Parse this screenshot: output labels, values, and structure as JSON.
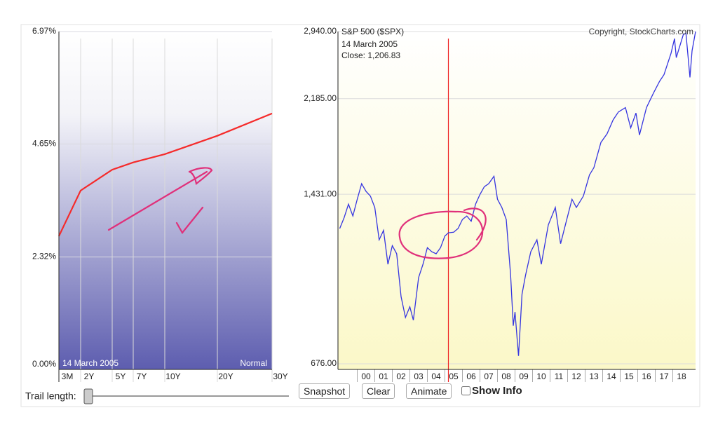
{
  "chart_data": [
    {
      "type": "line",
      "date": "14  March 2005",
      "curve_shape": "Normal",
      "categories": [
        "3M",
        "2Y",
        "5Y",
        "7Y",
        "10Y",
        "20Y",
        "30Y"
      ],
      "values": [
        2.75,
        3.69,
        4.12,
        4.27,
        4.44,
        4.82,
        5.28
      ],
      "color": "#f52a2a",
      "ylim": [
        0,
        6.97
      ],
      "yticks": [
        {
          "value": 0,
          "label": "0.00%"
        },
        {
          "value": 2.32,
          "label": "2.32%"
        },
        {
          "value": 4.65,
          "label": "4.65%"
        },
        {
          "value": 6.97,
          "label": "6.97%"
        }
      ]
    },
    {
      "type": "line",
      "title": "S&P 500 ($SPX)",
      "copyright": "Copyright, StockCharts.com",
      "cursor": {
        "date": "14  March 2005",
        "close_label": "Close: 1,206.83",
        "x": 5.2
      },
      "log_scale": true,
      "color": "#3535e0",
      "x": [
        -1.0,
        -0.75,
        -0.5,
        -0.25,
        0.0,
        0.25,
        0.5,
        0.75,
        1.0,
        1.25,
        1.5,
        1.75,
        2.0,
        2.25,
        2.5,
        2.75,
        3.0,
        3.2,
        3.5,
        3.75,
        4.0,
        4.25,
        4.5,
        4.75,
        5.0,
        5.2,
        5.5,
        5.75,
        6.0,
        6.25,
        6.5,
        6.75,
        7.0,
        7.25,
        7.5,
        7.8,
        8.0,
        8.25,
        8.5,
        8.75,
        8.9,
        9.0,
        9.2,
        9.4,
        9.6,
        9.9,
        10.25,
        10.5,
        10.9,
        11.3,
        11.6,
        11.9,
        12.25,
        12.5,
        12.9,
        13.25,
        13.5,
        13.9,
        14.25,
        14.6,
        14.9,
        15.3,
        15.6,
        15.9,
        16.1,
        16.5,
        16.9,
        17.25,
        17.5,
        17.9,
        18.1,
        18.2,
        18.6,
        18.75,
        18.98,
        19.1,
        19.3
      ],
      "values": [
        1230,
        1290,
        1370,
        1300,
        1400,
        1500,
        1450,
        1420,
        1350,
        1170,
        1220,
        1050,
        1140,
        1100,
        910,
        830,
        870,
        820,
        990,
        1050,
        1130,
        1110,
        1100,
        1130,
        1190,
        1206.83,
        1210,
        1230,
        1280,
        1300,
        1270,
        1370,
        1430,
        1480,
        1500,
        1550,
        1400,
        1350,
        1280,
        1000,
        800,
        850,
        700,
        920,
        1000,
        1110,
        1170,
        1050,
        1250,
        1350,
        1150,
        1260,
        1400,
        1350,
        1420,
        1560,
        1610,
        1800,
        1870,
        1990,
        2060,
        2100,
        1920,
        2050,
        1860,
        2100,
        2240,
        2360,
        2430,
        2670,
        2850,
        2620,
        2900,
        2920,
        2400,
        2700,
        2940
      ],
      "xlim": [
        -1.1,
        19.3
      ],
      "ylim": [
        676,
        2940
      ],
      "yticks": [
        {
          "value": 676,
          "label": "676.00"
        },
        {
          "value": 1431,
          "label": "1,431.00"
        },
        {
          "value": 2185,
          "label": "2,185.00"
        },
        {
          "value": 2940,
          "label": "2,940.00"
        }
      ],
      "xticks": [
        {
          "value": 0.5,
          "label": "00"
        },
        {
          "value": 1.5,
          "label": "01"
        },
        {
          "value": 2.5,
          "label": "02"
        },
        {
          "value": 3.5,
          "label": "03"
        },
        {
          "value": 4.5,
          "label": "04"
        },
        {
          "value": 5.5,
          "label": "05"
        },
        {
          "value": 6.5,
          "label": "06"
        },
        {
          "value": 7.5,
          "label": "07"
        },
        {
          "value": 8.5,
          "label": "08"
        },
        {
          "value": 9.5,
          "label": "09"
        },
        {
          "value": 10.5,
          "label": "10"
        },
        {
          "value": 11.5,
          "label": "11"
        },
        {
          "value": 12.5,
          "label": "12"
        },
        {
          "value": 13.5,
          "label": "13"
        },
        {
          "value": 14.5,
          "label": "14"
        },
        {
          "value": 15.5,
          "label": "15"
        },
        {
          "value": 16.5,
          "label": "16"
        },
        {
          "value": 17.5,
          "label": "17"
        },
        {
          "value": 18.5,
          "label": "18"
        }
      ]
    }
  ],
  "controls": {
    "trail_label": "Trail length:",
    "snapshot": "Snapshot",
    "clear": "Clear",
    "animate": "Animate",
    "show_info": "Show Info"
  }
}
